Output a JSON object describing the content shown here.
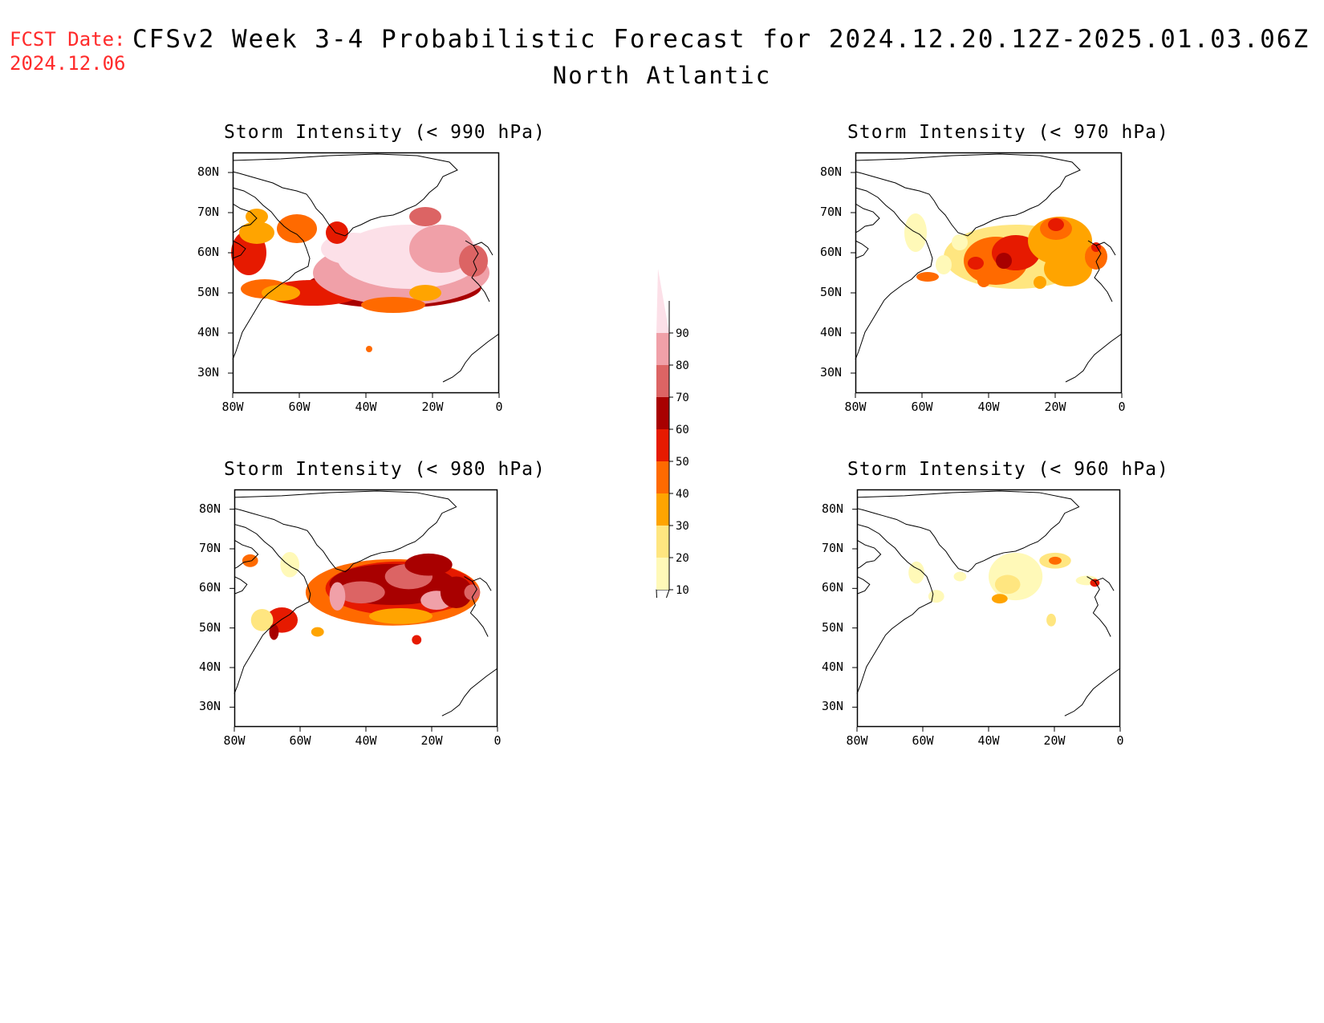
{
  "header": {
    "fcst_label": "FCST Date:",
    "fcst_date": "2024.12.06",
    "title": "CFSv2 Week 3-4 Probabilistic Forecast for 2024.12.20.12Z-2025.01.03.06Z",
    "region": "North Atlantic"
  },
  "panels": [
    {
      "title": "Storm Intensity (< 990 hPa)"
    },
    {
      "title": "Storm Intensity (< 970 hPa)"
    },
    {
      "title": "Storm Intensity (< 980 hPa)"
    },
    {
      "title": "Storm Intensity (< 960 hPa)"
    }
  ],
  "axes": {
    "lat_labels": [
      "80N",
      "70N",
      "60N",
      "50N",
      "40N",
      "30N"
    ],
    "lon_labels": [
      "80W",
      "60W",
      "40W",
      "20W",
      "0"
    ]
  },
  "colorbar": {
    "levels": [
      "10",
      "20",
      "30",
      "40",
      "50",
      "60",
      "70",
      "80",
      "90"
    ],
    "colors": [
      "#fff9b8",
      "#ffe680",
      "#ffa400",
      "#ff6a00",
      "#e61a00",
      "#a80000",
      "#dc6464",
      "#f0a0a8",
      "#fce0e8"
    ]
  }
}
